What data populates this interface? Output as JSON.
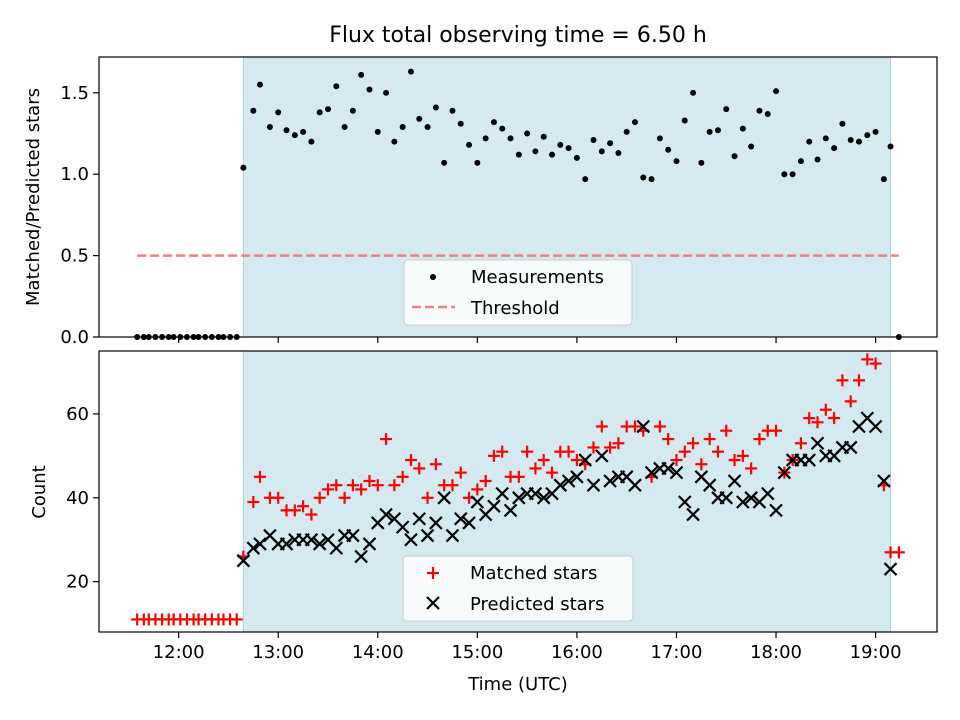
{
  "figure": {
    "title": "Flux total observing time = 6.50 h",
    "shade_color": "#d4eaf0",
    "shade_edge_color": "#a8d0e6",
    "shade_x_range": [
      "12:39",
      "19:09"
    ]
  },
  "chart_data": [
    {
      "type": "scatter",
      "title": "Flux total observing time = 6.50 h",
      "xlabel": "",
      "ylabel": "Matched/Predicted stars",
      "x_unit": "time of day (UTC)",
      "xlim": [
        "11:12",
        "19:37"
      ],
      "ylim": [
        0,
        1.72
      ],
      "yticks": [
        0.0,
        0.5,
        1.0,
        1.5
      ],
      "ytick_labels": [
        "0.0",
        "0.5",
        "1.0",
        "1.5"
      ],
      "xticks": [
        "12:00",
        "13:00",
        "14:00",
        "15:00",
        "16:00",
        "17:00",
        "18:00",
        "19:00"
      ],
      "grid": false,
      "legend": {
        "placement": "lower center"
      },
      "series": [
        {
          "name": "Measurements",
          "marker": "dot",
          "color": "#000000",
          "x": [
            "11:35",
            "11:39",
            "11:42",
            "11:46",
            "11:50",
            "11:54",
            "11:57",
            "12:01",
            "12:05",
            "12:09",
            "12:12",
            "12:16",
            "12:20",
            "12:24",
            "12:27",
            "12:31",
            "12:35",
            "12:39",
            "12:45",
            "12:49",
            "12:55",
            "13:00",
            "13:05",
            "13:10",
            "13:15",
            "13:20",
            "13:25",
            "13:30",
            "13:35",
            "13:40",
            "13:45",
            "13:50",
            "13:55",
            "14:00",
            "14:05",
            "14:10",
            "14:15",
            "14:20",
            "14:25",
            "14:30",
            "14:35",
            "14:40",
            "14:45",
            "14:50",
            "14:55",
            "15:00",
            "15:05",
            "15:10",
            "15:15",
            "15:20",
            "15:25",
            "15:30",
            "15:35",
            "15:40",
            "15:45",
            "15:50",
            "15:55",
            "16:00",
            "16:05",
            "16:10",
            "16:15",
            "16:20",
            "16:25",
            "16:30",
            "16:35",
            "16:40",
            "16:45",
            "16:50",
            "16:55",
            "17:00",
            "17:05",
            "17:10",
            "17:15",
            "17:20",
            "17:25",
            "17:30",
            "17:35",
            "17:40",
            "17:45",
            "17:50",
            "17:55",
            "18:00",
            "18:05",
            "18:10",
            "18:15",
            "18:20",
            "18:25",
            "18:30",
            "18:35",
            "18:40",
            "18:45",
            "18:50",
            "18:55",
            "19:00",
            "19:05",
            "19:09",
            "19:14"
          ],
          "y": [
            0.0,
            0.0,
            0.0,
            0.0,
            0.0,
            0.0,
            0.0,
            0.0,
            0.0,
            0.0,
            0.0,
            0.0,
            0.0,
            0.0,
            0.0,
            0.0,
            0.0,
            1.04,
            1.39,
            1.55,
            1.29,
            1.38,
            1.27,
            1.24,
            1.26,
            1.2,
            1.38,
            1.4,
            1.54,
            1.29,
            1.39,
            1.61,
            1.52,
            1.26,
            1.5,
            1.2,
            1.29,
            1.63,
            1.34,
            1.29,
            1.41,
            1.07,
            1.39,
            1.31,
            1.18,
            1.07,
            1.22,
            1.32,
            1.28,
            1.22,
            1.12,
            1.25,
            1.14,
            1.23,
            1.12,
            1.18,
            1.16,
            1.1,
            0.97,
            1.21,
            1.14,
            1.19,
            1.13,
            1.26,
            1.32,
            0.98,
            0.97,
            1.22,
            1.15,
            1.08,
            1.33,
            1.5,
            1.07,
            1.26,
            1.27,
            1.4,
            1.11,
            1.28,
            1.17,
            1.39,
            1.37,
            1.51,
            1.0,
            1.0,
            1.08,
            1.2,
            1.09,
            1.22,
            1.16,
            1.31,
            1.21,
            1.2,
            1.24,
            1.26,
            0.97,
            1.17,
            0.0
          ]
        },
        {
          "name": "Threshold",
          "style": "dashed",
          "color": "#f08080",
          "x": [
            "11:35",
            "19:14"
          ],
          "y": [
            0.5,
            0.5
          ]
        }
      ]
    },
    {
      "type": "scatter",
      "title": "",
      "xlabel": "Time (UTC)",
      "ylabel": "Count",
      "x_unit": "time of day (UTC)",
      "xlim": [
        "11:12",
        "19:37"
      ],
      "ylim": [
        8,
        75
      ],
      "yticks": [
        20,
        40,
        60
      ],
      "ytick_labels": [
        "20",
        "40",
        "60"
      ],
      "xticks": [
        "12:00",
        "13:00",
        "14:00",
        "15:00",
        "16:00",
        "17:00",
        "18:00",
        "19:00"
      ],
      "xtick_labels": [
        "12:00",
        "13:00",
        "14:00",
        "15:00",
        "16:00",
        "17:00",
        "18:00",
        "19:00"
      ],
      "grid": false,
      "legend": {
        "placement": "lower center"
      },
      "series": [
        {
          "name": "Matched stars",
          "marker": "plus",
          "color": "#ff0000",
          "x": [
            "11:35",
            "11:39",
            "11:42",
            "11:46",
            "11:50",
            "11:54",
            "11:57",
            "12:01",
            "12:05",
            "12:09",
            "12:12",
            "12:16",
            "12:20",
            "12:24",
            "12:27",
            "12:31",
            "12:35",
            "12:39",
            "12:45",
            "12:49",
            "12:55",
            "13:00",
            "13:05",
            "13:10",
            "13:15",
            "13:20",
            "13:25",
            "13:30",
            "13:35",
            "13:40",
            "13:45",
            "13:50",
            "13:55",
            "14:00",
            "14:05",
            "14:10",
            "14:15",
            "14:20",
            "14:25",
            "14:30",
            "14:35",
            "14:40",
            "14:45",
            "14:50",
            "14:55",
            "15:00",
            "15:05",
            "15:10",
            "15:15",
            "15:20",
            "15:25",
            "15:30",
            "15:35",
            "15:40",
            "15:45",
            "15:50",
            "15:55",
            "16:00",
            "16:05",
            "16:10",
            "16:15",
            "16:20",
            "16:25",
            "16:30",
            "16:35",
            "16:40",
            "16:45",
            "16:50",
            "16:55",
            "17:00",
            "17:05",
            "17:10",
            "17:15",
            "17:20",
            "17:25",
            "17:30",
            "17:35",
            "17:40",
            "17:45",
            "17:50",
            "17:55",
            "18:00",
            "18:05",
            "18:10",
            "18:15",
            "18:20",
            "18:25",
            "18:30",
            "18:35",
            "18:40",
            "18:45",
            "18:50",
            "18:55",
            "19:00",
            "19:05",
            "19:09",
            "19:14"
          ],
          "y": [
            11,
            11,
            11,
            11,
            11,
            11,
            11,
            11,
            11,
            11,
            11,
            11,
            11,
            11,
            11,
            11,
            11,
            26,
            39,
            45,
            40,
            40,
            37,
            37,
            38,
            36,
            40,
            42,
            43,
            40,
            43,
            42,
            44,
            43,
            54,
            43,
            45,
            49,
            47,
            40,
            48,
            43,
            43,
            46,
            40,
            42,
            44,
            50,
            51,
            45,
            45,
            51,
            47,
            49,
            46,
            51,
            51,
            49,
            48,
            52,
            57,
            52,
            53,
            57,
            57,
            56,
            45,
            57,
            54,
            49,
            51,
            53,
            48,
            54,
            51,
            56,
            49,
            50,
            47,
            54,
            56,
            56,
            46,
            49,
            53,
            59,
            58,
            61,
            59,
            68,
            63,
            68,
            73,
            72,
            43,
            27,
            27
          ]
        },
        {
          "name": "Predicted stars",
          "marker": "x",
          "color": "#000000",
          "x": [
            "12:39",
            "12:45",
            "12:49",
            "12:55",
            "13:00",
            "13:05",
            "13:10",
            "13:15",
            "13:20",
            "13:25",
            "13:30",
            "13:35",
            "13:40",
            "13:45",
            "13:50",
            "13:55",
            "14:00",
            "14:05",
            "14:10",
            "14:15",
            "14:20",
            "14:25",
            "14:30",
            "14:35",
            "14:40",
            "14:45",
            "14:50",
            "14:55",
            "15:00",
            "15:05",
            "15:10",
            "15:15",
            "15:20",
            "15:25",
            "15:30",
            "15:35",
            "15:40",
            "15:45",
            "15:50",
            "15:55",
            "16:00",
            "16:05",
            "16:10",
            "16:15",
            "16:20",
            "16:25",
            "16:30",
            "16:35",
            "16:40",
            "16:45",
            "16:50",
            "16:55",
            "17:00",
            "17:05",
            "17:10",
            "17:15",
            "17:20",
            "17:25",
            "17:30",
            "17:35",
            "17:40",
            "17:45",
            "17:50",
            "17:55",
            "18:00",
            "18:05",
            "18:10",
            "18:15",
            "18:20",
            "18:25",
            "18:30",
            "18:35",
            "18:40",
            "18:45",
            "18:50",
            "18:55",
            "19:00",
            "19:05",
            "19:09"
          ],
          "y": [
            25,
            28,
            29,
            31,
            29,
            29,
            30,
            30,
            30,
            29,
            30,
            28,
            31,
            31,
            26,
            29,
            34,
            36,
            35,
            33,
            30,
            35,
            31,
            34,
            40,
            31,
            35,
            34,
            39,
            36,
            38,
            41,
            37,
            40,
            41,
            41,
            40,
            41,
            43,
            44,
            45,
            49,
            43,
            50,
            44,
            45,
            45,
            43,
            57,
            46,
            47,
            47,
            46,
            39,
            36,
            45,
            43,
            40,
            40,
            44,
            39,
            40,
            39,
            41,
            37,
            46,
            49,
            49,
            49,
            53,
            50,
            50,
            52,
            52,
            57,
            59,
            57,
            44,
            23
          ]
        }
      ]
    }
  ]
}
